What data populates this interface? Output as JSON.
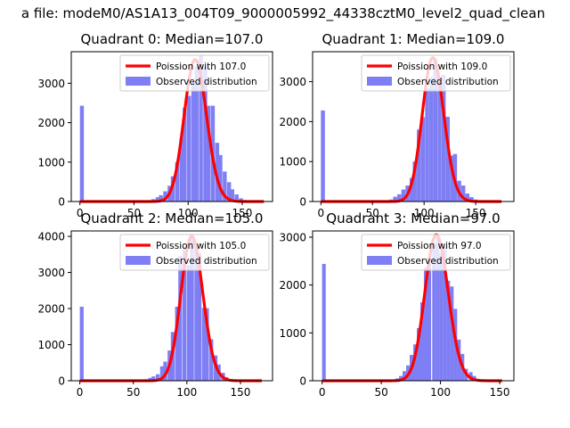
{
  "suptitle": "a file: modeM0/AS1A13_004T09_9000005992_44338cztM0_level2_quad_clean",
  "colors": {
    "observed": "#7f7ff5",
    "poisson": "#ff0000"
  },
  "chart_data": [
    {
      "type": "bar",
      "title": "Quadrant 0: Median=107.0",
      "xlim": [
        -8,
        178
      ],
      "ylim": [
        0,
        3800
      ],
      "xticks": [
        0,
        50,
        100,
        150
      ],
      "yticks": [
        0,
        1000,
        2000,
        3000
      ],
      "legend": [
        "Poission with 107.0",
        "Observed distribution"
      ],
      "legend_position": "upper right",
      "bin_width": 3.66,
      "bins": [
        [
          0,
          2430
        ],
        [
          62,
          20
        ],
        [
          66,
          60
        ],
        [
          70,
          110
        ],
        [
          73,
          160
        ],
        [
          77,
          260
        ],
        [
          81,
          400
        ],
        [
          84,
          640
        ],
        [
          88,
          1000
        ],
        [
          92,
          1600
        ],
        [
          95,
          2380
        ],
        [
          99,
          2680
        ],
        [
          103,
          3040
        ],
        [
          106,
          3430
        ],
        [
          110,
          3700
        ],
        [
          114,
          3430
        ],
        [
          117,
          2430
        ],
        [
          121,
          2430
        ],
        [
          125,
          1490
        ],
        [
          128,
          1180
        ],
        [
          132,
          760
        ],
        [
          136,
          490
        ],
        [
          139,
          310
        ],
        [
          143,
          180
        ],
        [
          147,
          80
        ],
        [
          150,
          40
        ],
        [
          154,
          15
        ]
      ],
      "poisson": {
        "mean": 107.0,
        "peak": 3600,
        "xmax": 170
      }
    },
    {
      "type": "bar",
      "title": "Quadrant 1: Median=109.0",
      "xlim": [
        -8,
        187
      ],
      "ylim": [
        0,
        3750
      ],
      "xticks": [
        0,
        50,
        100,
        150
      ],
      "yticks": [
        0,
        1000,
        2000,
        3000
      ],
      "legend": [
        "Poission with 109.0",
        "Observed distribution"
      ],
      "legend_position": "upper right",
      "bin_width": 3.9,
      "bins": [
        [
          0,
          2280
        ],
        [
          62,
          20
        ],
        [
          66,
          50
        ],
        [
          70,
          120
        ],
        [
          74,
          180
        ],
        [
          78,
          300
        ],
        [
          82,
          400
        ],
        [
          86,
          590
        ],
        [
          89,
          1000
        ],
        [
          93,
          1800
        ],
        [
          97,
          2110
        ],
        [
          101,
          2830
        ],
        [
          105,
          3110
        ],
        [
          109,
          3570
        ],
        [
          113,
          3000
        ],
        [
          117,
          3170
        ],
        [
          121,
          2120
        ],
        [
          125,
          1150
        ],
        [
          128,
          1190
        ],
        [
          132,
          520
        ],
        [
          136,
          400
        ],
        [
          140,
          200
        ],
        [
          144,
          110
        ],
        [
          148,
          50
        ],
        [
          152,
          15
        ]
      ],
      "poisson": {
        "mean": 109.0,
        "peak": 3600,
        "xmax": 175
      }
    },
    {
      "type": "bar",
      "title": "Quadrant 2: Median=105.0",
      "xlim": [
        -8,
        180
      ],
      "ylim": [
        0,
        4150
      ],
      "xticks": [
        0,
        50,
        100,
        150
      ],
      "yticks": [
        0,
        1000,
        2000,
        3000,
        4000
      ],
      "legend": [
        "Poission with 105.0",
        "Observed distribution"
      ],
      "legend_position": "upper right",
      "bin_width": 3.58,
      "bins": [
        [
          0,
          2050
        ],
        [
          55,
          15
        ],
        [
          60,
          40
        ],
        [
          64,
          80
        ],
        [
          67,
          120
        ],
        [
          71,
          180
        ],
        [
          75,
          400
        ],
        [
          78,
          530
        ],
        [
          82,
          840
        ],
        [
          85,
          1350
        ],
        [
          89,
          2050
        ],
        [
          92,
          3460
        ],
        [
          96,
          3700
        ],
        [
          100,
          3200
        ],
        [
          103,
          3990
        ],
        [
          107,
          3650
        ],
        [
          110,
          3540
        ],
        [
          114,
          2020
        ],
        [
          117,
          2010
        ],
        [
          121,
          1150
        ],
        [
          125,
          700
        ],
        [
          128,
          450
        ],
        [
          132,
          220
        ],
        [
          135,
          100
        ],
        [
          139,
          40
        ],
        [
          142,
          15
        ]
      ],
      "poisson": {
        "mean": 105.0,
        "peak": 4000,
        "xmax": 170
      }
    },
    {
      "type": "bar",
      "title": "Quadrant 3: Median=97.0",
      "xlim": [
        -8,
        162
      ],
      "ylim": [
        0,
        3130
      ],
      "xticks": [
        0,
        50,
        100,
        150
      ],
      "yticks": [
        0,
        1000,
        2000,
        3000
      ],
      "legend": [
        "Poission with 97.0",
        "Observed distribution"
      ],
      "legend_position": "upper right",
      "bin_width": 3.1,
      "bins": [
        [
          0,
          2440
        ],
        [
          58,
          20
        ],
        [
          62,
          50
        ],
        [
          65,
          100
        ],
        [
          68,
          200
        ],
        [
          71,
          320
        ],
        [
          74,
          540
        ],
        [
          77,
          760
        ],
        [
          80,
          1100
        ],
        [
          83,
          1640
        ],
        [
          86,
          2370
        ],
        [
          89,
          2590
        ],
        [
          93,
          2880
        ],
        [
          96,
          3000
        ],
        [
          99,
          2660
        ],
        [
          102,
          2800
        ],
        [
          105,
          2090
        ],
        [
          108,
          1970
        ],
        [
          111,
          1500
        ],
        [
          114,
          860
        ],
        [
          117,
          560
        ],
        [
          120,
          250
        ],
        [
          124,
          180
        ],
        [
          127,
          100
        ],
        [
          130,
          40
        ],
        [
          133,
          15
        ]
      ],
      "poisson": {
        "mean": 97.0,
        "peak": 3050,
        "xmax": 152
      }
    }
  ]
}
